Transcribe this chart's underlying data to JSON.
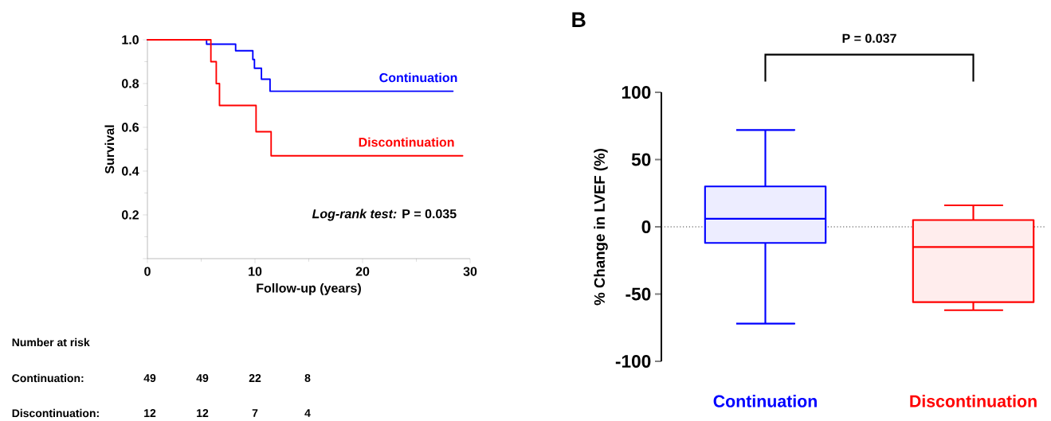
{
  "chart_data": [
    {
      "type": "step",
      "xlabel": "Follow-up (years)",
      "ylabel": "Survival",
      "xlim": [
        0,
        30
      ],
      "ylim": [
        0,
        1.0
      ],
      "xticks": [
        0,
        10,
        20,
        30
      ],
      "yticks": [
        {
          "value": 0,
          "label": null
        },
        {
          "value": 0.2,
          "label": "0.2"
        },
        {
          "value": 0.4,
          "label": "0.4"
        },
        {
          "value": 0.6,
          "label": "0.6"
        },
        {
          "value": 0.8,
          "label": "0.8"
        },
        {
          "value": 1.0,
          "label": "1.0"
        }
      ],
      "series": [
        {
          "name": "Continuation",
          "color": "#0000ff",
          "x": [
            0,
            5.5,
            8.2,
            9.8,
            9.95,
            10.6,
            11.4,
            28.4
          ],
          "values": [
            1.0,
            0.98,
            0.95,
            0.91,
            0.87,
            0.82,
            0.765,
            0.765
          ]
        },
        {
          "name": "Discontinuation",
          "color": "#ff0000",
          "x": [
            0,
            5.9,
            6.4,
            6.7,
            10.1,
            11.5,
            29.3
          ],
          "values": [
            1.0,
            0.9,
            0.8,
            0.7,
            0.58,
            0.47,
            0.47
          ]
        }
      ],
      "annotations": [
        "*Log-rank test:* P = 0.035",
        "Number at risk",
        "Continuation:",
        "49",
        "49",
        "22",
        "8",
        "Discontinuation:",
        "12",
        "12",
        "7",
        "4"
      ]
    },
    {
      "type": "box",
      "title": "B",
      "ylabel": "% Change in LVEF (%)",
      "categories": [
        "Continuation",
        "Discontinuation"
      ],
      "colors": [
        "#0000ff",
        "#ff0000"
      ],
      "ylim": [
        -100,
        100
      ],
      "yticks": [
        -100,
        -50,
        0,
        50,
        100
      ],
      "boxes": [
        {
          "low": -72,
          "q1": -12,
          "median": 6,
          "q3": 30,
          "high": 72
        },
        {
          "low": -62,
          "q1": -56,
          "median": -15,
          "q3": 5,
          "high": 16
        }
      ],
      "ref_lines": [
        {
          "axis": "y",
          "value": 0,
          "color": "#404040",
          "line_style": "dotted"
        }
      ],
      "annotations": [
        "P = 0.037"
      ]
    }
  ]
}
